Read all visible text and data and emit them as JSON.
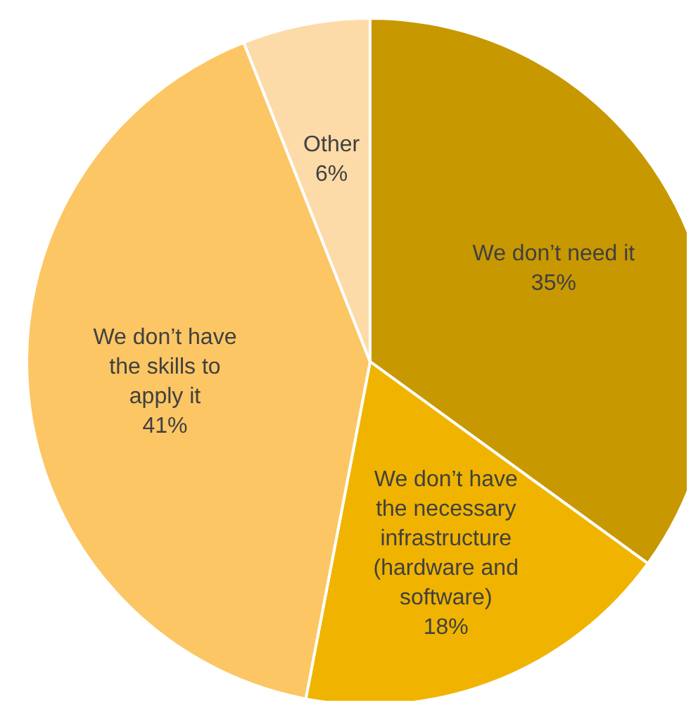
{
  "chart_data": {
    "type": "pie",
    "categories": [
      "We don’t need it",
      "We don’t have the necessary infrastructure (hardware and software)",
      "We don’t have the skills to apply it",
      "Other"
    ],
    "values": [
      35,
      18,
      41,
      6
    ],
    "colors": [
      "#c89800",
      "#f0b400",
      "#fcc664",
      "#fddba8"
    ],
    "value_labels": [
      "35%",
      "18%",
      "41%",
      "6%"
    ]
  }
}
